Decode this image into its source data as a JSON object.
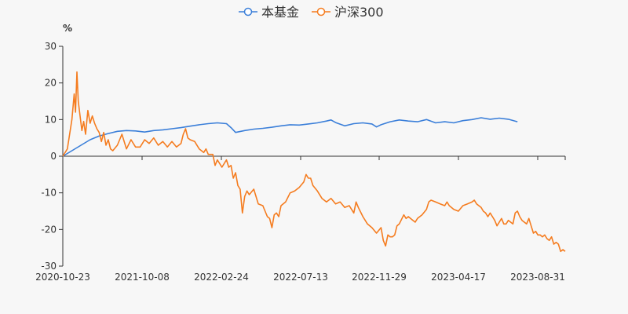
{
  "chart_data": {
    "type": "line",
    "unit": "%",
    "title": "",
    "xlabel": "",
    "ylabel": "",
    "x_tick_labels": [
      "2020-10-23",
      "2021-10-08",
      "2022-02-24",
      "2022-07-13",
      "2022-11-29",
      "2023-04-17",
      "2023-08-31"
    ],
    "ylim": [
      -30,
      30
    ],
    "y_ticks": [
      30,
      20,
      10,
      0,
      -10,
      -20,
      -30
    ],
    "grid": false,
    "legend_position": "top-center",
    "series": [
      {
        "name": "本基金",
        "color": "#3b7fd9",
        "points": [
          [
            0,
            0
          ],
          [
            0.02,
            1.5
          ],
          [
            0.04,
            3.0
          ],
          [
            0.06,
            4.5
          ],
          [
            0.08,
            5.5
          ],
          [
            0.1,
            6.2
          ],
          [
            0.12,
            6.8
          ],
          [
            0.14,
            7.0
          ],
          [
            0.16,
            6.9
          ],
          [
            0.18,
            6.6
          ],
          [
            0.2,
            7.0
          ],
          [
            0.22,
            7.2
          ],
          [
            0.24,
            7.5
          ],
          [
            0.26,
            7.8
          ],
          [
            0.28,
            8.2
          ],
          [
            0.3,
            8.6
          ],
          [
            0.32,
            8.9
          ],
          [
            0.34,
            9.1
          ],
          [
            0.36,
            8.9
          ],
          [
            0.37,
            7.8
          ],
          [
            0.38,
            6.5
          ],
          [
            0.4,
            7.0
          ],
          [
            0.42,
            7.4
          ],
          [
            0.44,
            7.6
          ],
          [
            0.46,
            7.9
          ],
          [
            0.48,
            8.3
          ],
          [
            0.5,
            8.6
          ],
          [
            0.52,
            8.5
          ],
          [
            0.54,
            8.8
          ],
          [
            0.56,
            9.1
          ],
          [
            0.58,
            9.6
          ],
          [
            0.59,
            9.9
          ],
          [
            0.6,
            9.2
          ],
          [
            0.62,
            8.3
          ],
          [
            0.64,
            8.9
          ],
          [
            0.66,
            9.1
          ],
          [
            0.68,
            8.8
          ],
          [
            0.69,
            8.0
          ],
          [
            0.7,
            8.6
          ],
          [
            0.72,
            9.4
          ],
          [
            0.74,
            9.9
          ],
          [
            0.76,
            9.6
          ],
          [
            0.78,
            9.4
          ],
          [
            0.8,
            10.0
          ],
          [
            0.82,
            9.1
          ],
          [
            0.84,
            9.4
          ],
          [
            0.86,
            9.1
          ],
          [
            0.88,
            9.7
          ],
          [
            0.9,
            10.0
          ],
          [
            0.92,
            10.5
          ],
          [
            0.94,
            10.1
          ],
          [
            0.96,
            10.4
          ],
          [
            0.98,
            10.1
          ],
          [
            1.0,
            9.4
          ]
        ]
      },
      {
        "name": "沪深300",
        "color": "#f57c1f",
        "points": [
          [
            0,
            0
          ],
          [
            0.01,
            2.0
          ],
          [
            0.015,
            6.0
          ],
          [
            0.02,
            10.0
          ],
          [
            0.025,
            17.0
          ],
          [
            0.028,
            12.0
          ],
          [
            0.031,
            23.0
          ],
          [
            0.034,
            15.0
          ],
          [
            0.038,
            11.0
          ],
          [
            0.042,
            7.0
          ],
          [
            0.046,
            9.5
          ],
          [
            0.05,
            6.0
          ],
          [
            0.055,
            12.5
          ],
          [
            0.06,
            9.0
          ],
          [
            0.065,
            11.0
          ],
          [
            0.07,
            9.0
          ],
          [
            0.075,
            7.5
          ],
          [
            0.08,
            6.5
          ],
          [
            0.085,
            4.0
          ],
          [
            0.09,
            6.5
          ],
          [
            0.095,
            3.0
          ],
          [
            0.1,
            4.5
          ],
          [
            0.105,
            2.0
          ],
          [
            0.11,
            1.5
          ],
          [
            0.12,
            3.0
          ],
          [
            0.13,
            6.0
          ],
          [
            0.14,
            2.0
          ],
          [
            0.15,
            4.5
          ],
          [
            0.16,
            2.5
          ],
          [
            0.17,
            2.5
          ],
          [
            0.18,
            4.5
          ],
          [
            0.19,
            3.5
          ],
          [
            0.2,
            5.0
          ],
          [
            0.21,
            3.0
          ],
          [
            0.22,
            4.0
          ],
          [
            0.23,
            2.5
          ],
          [
            0.24,
            4.0
          ],
          [
            0.25,
            2.5
          ],
          [
            0.26,
            3.5
          ],
          [
            0.265,
            6.0
          ],
          [
            0.27,
            7.5
          ],
          [
            0.275,
            5.0
          ],
          [
            0.28,
            4.5
          ],
          [
            0.29,
            4.0
          ],
          [
            0.3,
            2.0
          ],
          [
            0.31,
            1.0
          ],
          [
            0.315,
            2.0
          ],
          [
            0.32,
            0.5
          ],
          [
            0.33,
            0.5
          ],
          [
            0.335,
            -2.5
          ],
          [
            0.34,
            -1.0
          ],
          [
            0.35,
            -3.0
          ],
          [
            0.36,
            -1.0
          ],
          [
            0.365,
            -3.0
          ],
          [
            0.37,
            -2.5
          ],
          [
            0.375,
            -6.0
          ],
          [
            0.38,
            -4.5
          ],
          [
            0.385,
            -8.0
          ],
          [
            0.39,
            -9.0
          ],
          [
            0.395,
            -15.5
          ],
          [
            0.4,
            -11.0
          ],
          [
            0.405,
            -9.5
          ],
          [
            0.41,
            -10.5
          ],
          [
            0.42,
            -9.0
          ],
          [
            0.43,
            -13.0
          ],
          [
            0.44,
            -13.5
          ],
          [
            0.45,
            -16.5
          ],
          [
            0.455,
            -17.0
          ],
          [
            0.46,
            -19.5
          ],
          [
            0.465,
            -16.0
          ],
          [
            0.47,
            -15.5
          ],
          [
            0.475,
            -16.5
          ],
          [
            0.48,
            -13.5
          ],
          [
            0.49,
            -12.5
          ],
          [
            0.5,
            -10.0
          ],
          [
            0.51,
            -9.5
          ],
          [
            0.52,
            -8.5
          ],
          [
            0.53,
            -7.0
          ],
          [
            0.535,
            -5.0
          ],
          [
            0.54,
            -6.0
          ],
          [
            0.545,
            -6.0
          ],
          [
            0.55,
            -8.0
          ],
          [
            0.56,
            -9.5
          ],
          [
            0.57,
            -11.5
          ],
          [
            0.58,
            -12.5
          ],
          [
            0.59,
            -11.5
          ],
          [
            0.6,
            -13.0
          ],
          [
            0.61,
            -12.5
          ],
          [
            0.62,
            -14.0
          ],
          [
            0.63,
            -13.5
          ],
          [
            0.64,
            -15.5
          ],
          [
            0.645,
            -12.5
          ],
          [
            0.65,
            -14.0
          ],
          [
            0.66,
            -16.5
          ],
          [
            0.67,
            -18.5
          ],
          [
            0.68,
            -19.5
          ],
          [
            0.69,
            -21.0
          ],
          [
            0.7,
            -19.5
          ],
          [
            0.705,
            -23.0
          ],
          [
            0.71,
            -24.5
          ],
          [
            0.715,
            -21.5
          ],
          [
            0.72,
            -22.0
          ],
          [
            0.725,
            -22.0
          ],
          [
            0.73,
            -21.5
          ],
          [
            0.735,
            -19.0
          ],
          [
            0.74,
            -18.5
          ],
          [
            0.75,
            -16.0
          ],
          [
            0.755,
            -17.0
          ],
          [
            0.76,
            -16.5
          ],
          [
            0.77,
            -17.5
          ],
          [
            0.775,
            -18.0
          ],
          [
            0.78,
            -17.0
          ],
          [
            0.79,
            -16.0
          ],
          [
            0.8,
            -14.5
          ],
          [
            0.805,
            -12.5
          ],
          [
            0.81,
            -12.0
          ],
          [
            0.82,
            -12.5
          ],
          [
            0.83,
            -13.0
          ],
          [
            0.84,
            -13.5
          ],
          [
            0.845,
            -12.5
          ],
          [
            0.85,
            -13.5
          ],
          [
            0.86,
            -14.5
          ],
          [
            0.87,
            -15.0
          ],
          [
            0.88,
            -13.5
          ],
          [
            0.89,
            -13.0
          ],
          [
            0.9,
            -12.5
          ],
          [
            0.905,
            -12.0
          ],
          [
            0.91,
            -13.0
          ],
          [
            0.92,
            -14.0
          ],
          [
            0.925,
            -15.0
          ],
          [
            0.93,
            -15.5
          ],
          [
            0.935,
            -16.5
          ],
          [
            0.94,
            -15.5
          ],
          [
            0.945,
            -16.5
          ],
          [
            0.95,
            -17.5
          ],
          [
            0.955,
            -19.0
          ],
          [
            0.96,
            -18.0
          ],
          [
            0.965,
            -17.0
          ],
          [
            0.97,
            -18.5
          ],
          [
            0.975,
            -18.5
          ],
          [
            0.98,
            -17.5
          ],
          [
            0.985,
            -18.0
          ],
          [
            0.99,
            -18.5
          ],
          [
            0.995,
            -15.5
          ],
          [
            1.0,
            -15.0
          ],
          [
            1.005,
            -16.5
          ],
          [
            1.01,
            -17.5
          ],
          [
            1.015,
            -18.0
          ],
          [
            1.02,
            -18.5
          ],
          [
            1.025,
            -17.0
          ],
          [
            1.03,
            -19.0
          ],
          [
            1.035,
            -21.0
          ],
          [
            1.04,
            -20.5
          ],
          [
            1.045,
            -21.5
          ],
          [
            1.05,
            -21.5
          ],
          [
            1.055,
            -22.0
          ],
          [
            1.06,
            -21.5
          ],
          [
            1.065,
            -22.5
          ],
          [
            1.07,
            -23.0
          ],
          [
            1.075,
            -22.0
          ],
          [
            1.08,
            -24.0
          ],
          [
            1.085,
            -23.5
          ],
          [
            1.09,
            -24.0
          ],
          [
            1.095,
            -26.0
          ],
          [
            1.1,
            -25.5
          ],
          [
            1.105,
            -26.0
          ]
        ]
      }
    ]
  }
}
